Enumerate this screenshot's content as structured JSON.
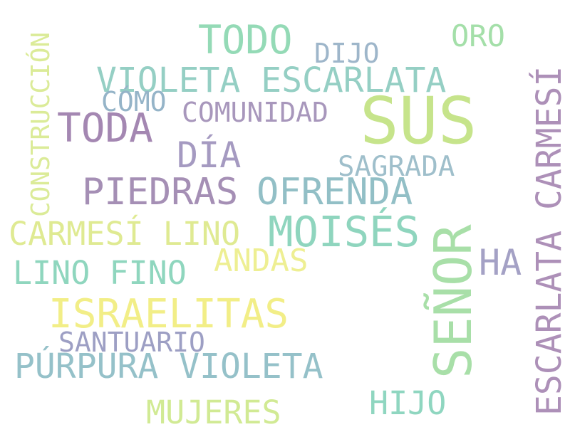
{
  "words": [
    {
      "text": "SUS",
      "color": "#c6e48b"
    },
    {
      "text": "SEÑOR",
      "color": "#a8dfa8"
    },
    {
      "text": "ISRAELITAS",
      "color": "#f2ee87"
    },
    {
      "text": "MOISÉS",
      "color": "#8fd5be"
    },
    {
      "text": "OFRENDA",
      "color": "#92bfc6"
    },
    {
      "text": "PIEDRAS",
      "color": "#a58fb5"
    },
    {
      "text": "TODO",
      "color": "#94dab6"
    },
    {
      "text": "TODA",
      "color": "#a487b2"
    },
    {
      "text": "VIOLETA ESCARLATA",
      "color": "#95cfc4"
    },
    {
      "text": "PÚRPURA VIOLETA",
      "color": "#95c1c9"
    },
    {
      "text": "ESCARLATA CARMESÍ",
      "color": "#ad90b8"
    },
    {
      "text": "DÍA",
      "color": "#a59ac1"
    },
    {
      "text": "HA",
      "color": "#a4a1c5"
    },
    {
      "text": "CARMESÍ LINO",
      "color": "#dfea92"
    },
    {
      "text": "LINO FINO",
      "color": "#8fd6be"
    },
    {
      "text": "ANDAS",
      "color": "#eeef93"
    },
    {
      "text": "SAGRADA",
      "color": "#9fbfcb"
    },
    {
      "text": "COMUNIDAD",
      "color": "#a897bc"
    },
    {
      "text": "CÓMO",
      "color": "#95b4c8"
    },
    {
      "text": "DIJO",
      "color": "#9eb6ca"
    },
    {
      "text": "ORO",
      "color": "#a4dfa9"
    },
    {
      "text": "SANTUARIO",
      "color": "#9d9fc4"
    },
    {
      "text": "MUJERES",
      "color": "#d1ea94"
    },
    {
      "text": "HIJO",
      "color": "#8fd6c0"
    },
    {
      "text": "CONSTRUCCIÓN",
      "color": "#dbeb98"
    }
  ]
}
